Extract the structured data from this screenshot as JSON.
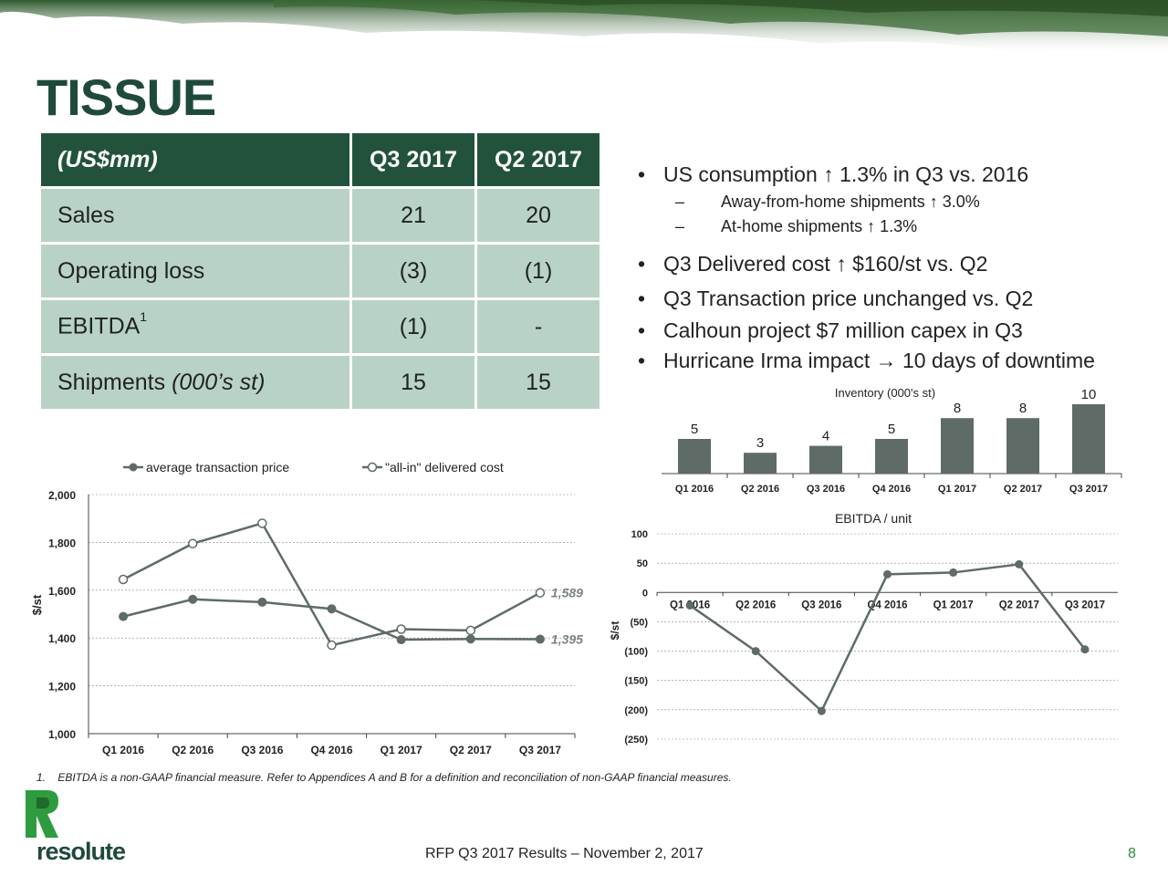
{
  "title": "TISSUE",
  "table": {
    "headers": [
      "(US$mm)",
      "Q3 2017",
      "Q2 2017"
    ],
    "rows": [
      {
        "label": "Sales",
        "sup": "",
        "italic": "",
        "q3": "21",
        "q2": "20"
      },
      {
        "label": "Operating loss",
        "sup": "",
        "italic": "",
        "q3": "(3)",
        "q2": "(1)"
      },
      {
        "label": "EBITDA",
        "sup": "1",
        "italic": "",
        "q3": "(1)",
        "q2": "-"
      },
      {
        "label": "Shipments ",
        "sup": "",
        "italic": "(000’s st)",
        "q3": "15",
        "q2": "15"
      }
    ]
  },
  "bullets": {
    "b1": "US consumption ↑ 1.3% in Q3 vs. 2016",
    "b1_sub1": "Away-from-home shipments ↑ 3.0%",
    "b1_sub2": "At-home shipments ↑ 1.3%",
    "b2": "Q3 Delivered cost ↑ $160/st vs. Q2",
    "b3": "Q3 Transaction price unchanged vs. Q2",
    "b4": "Calhoun project $7 million capex in Q3",
    "b5": "Hurricane Irma impact → 10 days of downtime",
    "bullet_glyph": "•",
    "dash_glyph": "–"
  },
  "chart_data": [
    {
      "type": "bar",
      "title": "Inventory (000's st)",
      "categories": [
        "Q1 2016",
        "Q2 2016",
        "Q3 2016",
        "Q4 2016",
        "Q1 2017",
        "Q2 2017",
        "Q3 2017"
      ],
      "values": [
        5,
        3,
        4,
        5,
        8,
        8,
        10
      ],
      "color": "#5f6b67"
    },
    {
      "type": "line",
      "title": "",
      "ylabel": "$/st",
      "categories": [
        "Q1 2016",
        "Q2 2016",
        "Q3 2016",
        "Q4 2016",
        "Q1 2017",
        "Q2 2017",
        "Q3 2017"
      ],
      "ylim": [
        1000,
        2000
      ],
      "yticks": [
        "1,000",
        "1,200",
        "1,400",
        "1,600",
        "1,800",
        "2,000"
      ],
      "series": [
        {
          "name": "average transaction price",
          "values": [
            1490,
            1562,
            1550,
            1522,
            1393,
            1396,
            1395
          ],
          "marker": "filled"
        },
        {
          "name": "\"all-in\" delivered cost",
          "values": [
            1645,
            1795,
            1880,
            1370,
            1437,
            1432,
            1589
          ],
          "marker": "hollow"
        }
      ],
      "labels": {
        "last_atp": "1,395",
        "last_cost": "1,589"
      }
    },
    {
      "type": "line",
      "title": "EBITDA / unit",
      "ylabel": "$/st",
      "categories": [
        "Q1 2016",
        "Q2 2016",
        "Q3 2016",
        "Q4 2016",
        "Q1 2017",
        "Q2 2017",
        "Q3 2017"
      ],
      "ylim": [
        -250,
        100
      ],
      "yticks": [
        "100",
        "50",
        "0",
        "(50)",
        "(100)",
        "(150)",
        "(200)",
        "(250)"
      ],
      "series": [
        {
          "name": "EBITDA / unit",
          "values": [
            -22,
            -100,
            -202,
            31,
            34,
            48,
            -97
          ]
        }
      ]
    }
  ],
  "footnote": "1.    EBITDA is a non-GAAP financial measure. Refer to Appendices A and B for a definition and reconciliation of non-GAAP financial measures.",
  "footer": "RFP Q3 2017 Results – November 2, 2017",
  "page_number": "8",
  "logo": "resolute"
}
